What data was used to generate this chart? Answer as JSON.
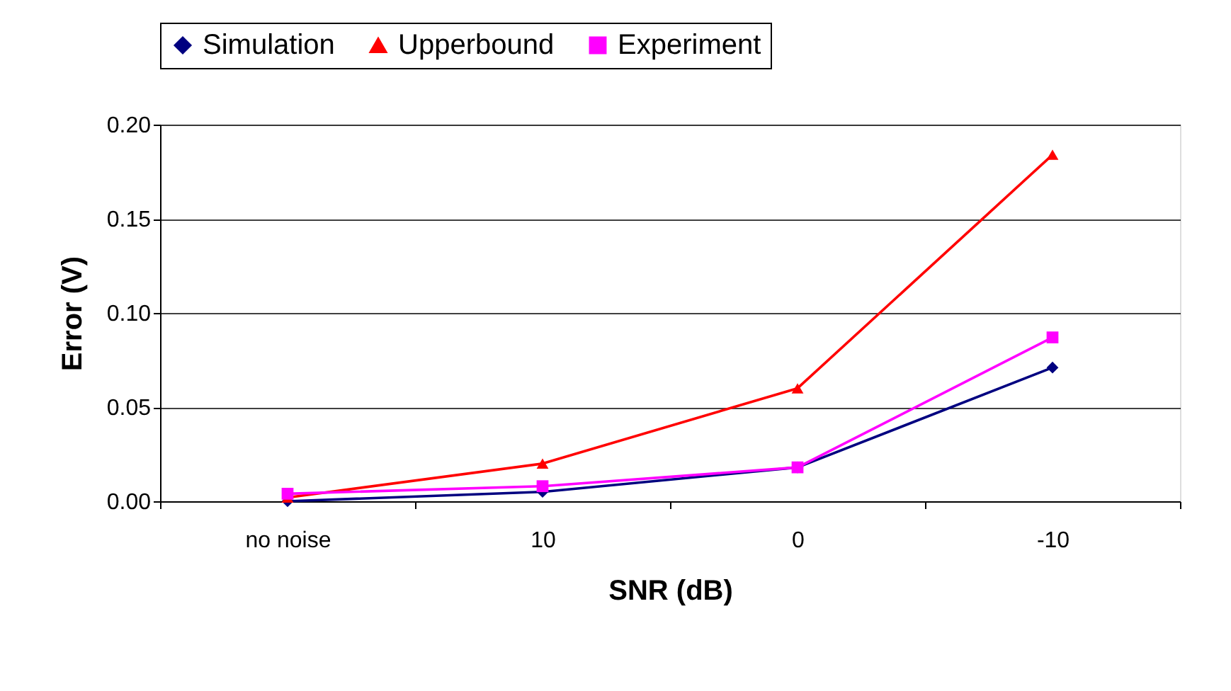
{
  "chart_data": {
    "type": "line",
    "xlabel": "SNR (dB)",
    "ylabel": "Error (V)",
    "categories": [
      "no noise",
      "10",
      "0",
      "-10"
    ],
    "series": [
      {
        "name": "Simulation",
        "color": "#000080",
        "marker": "diamond",
        "values": [
          0.0,
          0.005,
          0.018,
          0.071
        ]
      },
      {
        "name": "Upperbound",
        "color": "#ff0000",
        "marker": "triangle",
        "values": [
          0.002,
          0.02,
          0.06,
          0.184
        ]
      },
      {
        "name": "Experiment",
        "color": "#ff00ff",
        "marker": "square",
        "values": [
          0.004,
          0.008,
          0.018,
          0.087
        ]
      }
    ],
    "ylim": [
      0,
      0.2
    ],
    "yticks": [
      {
        "value": 0,
        "label": "0.00"
      },
      {
        "value": 0.05,
        "label": "0.05"
      },
      {
        "value": 0.1,
        "label": "0.10"
      },
      {
        "value": 0.15,
        "label": "0.15"
      },
      {
        "value": 0.2,
        "label": "0.20"
      }
    ],
    "grid": "y",
    "legend": "top"
  }
}
